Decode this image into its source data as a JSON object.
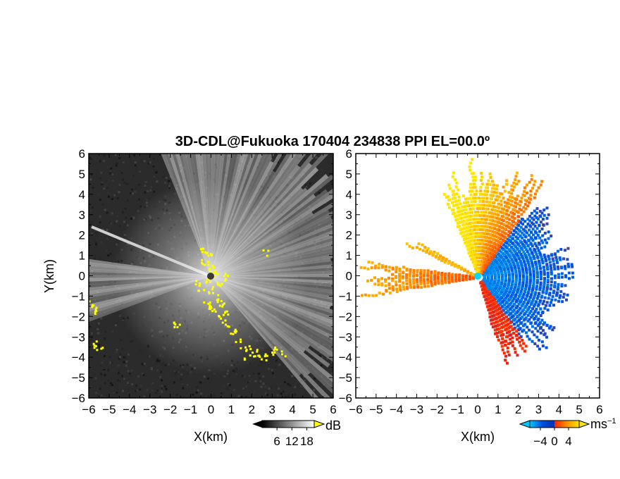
{
  "title": "3D-CDL@Fukuoka 170404 234838 PPI EL=00.0º",
  "chart_data": [
    {
      "type": "heatmap",
      "name": "backscatter-ppi",
      "xlabel": "X(km)",
      "ylabel": "Y(km)",
      "xlim": [
        -6,
        6
      ],
      "ylim": [
        -6,
        6
      ],
      "xticks": [
        "−6",
        "−5",
        "−4",
        "−3",
        "−2",
        "−1",
        "0",
        "1",
        "2",
        "3",
        "4",
        "5",
        "6"
      ],
      "yticks": [
        "6",
        "5",
        "4",
        "3",
        "2",
        "1",
        "0",
        "−1",
        "−2",
        "−3",
        "−4",
        "−5",
        "−6"
      ],
      "colorbar": {
        "unit": "dB",
        "ticks": [
          6,
          12,
          18
        ],
        "tick_labels": [
          "6",
          "12",
          "18"
        ],
        "range": [
          0,
          21
        ],
        "colors": [
          "#000000",
          "#ffffff"
        ],
        "flag_color": "#ffff00"
      }
    },
    {
      "type": "heatmap",
      "name": "radial-velocity-ppi",
      "xlabel": "X(km)",
      "ylabel": "",
      "xlim": [
        -6,
        6
      ],
      "ylim": [
        -6,
        6
      ],
      "xticks": [
        "−6",
        "−5",
        "−4",
        "−3",
        "−2",
        "−1",
        "0",
        "1",
        "2",
        "3",
        "4",
        "5",
        "6"
      ],
      "yticks": [
        "6",
        "5",
        "4",
        "3",
        "2",
        "1",
        "0",
        "−1",
        "−2",
        "−3",
        "−4",
        "−5",
        "−6"
      ],
      "colorbar": {
        "unit": "ms",
        "unit_exp": "−1",
        "ticks": [
          -4,
          0,
          4
        ],
        "tick_labels": [
          "−4",
          "0",
          "4"
        ],
        "range": [
          -7,
          7
        ],
        "colors": [
          "#00c8ff",
          "#0050e0",
          "#ff2000",
          "#ff9000",
          "#ffe600"
        ]
      }
    }
  ]
}
